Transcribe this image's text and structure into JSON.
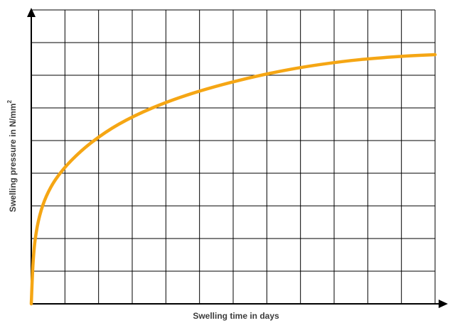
{
  "chart_data": {
    "type": "line",
    "xlabel": "Swelling time in days",
    "ylabel": "Swelling pressure in N/mm",
    "ylabel_superscript": "2",
    "xlim": [
      0,
      12
    ],
    "ylim": [
      0,
      9
    ],
    "grid": true,
    "x_gridlines": 12,
    "y_gridlines": 9,
    "series": [
      {
        "color": "#f5a614",
        "x": [
          0,
          0.05,
          0.12,
          0.25,
          0.45,
          0.75,
          1.2,
          1.8,
          2.6,
          3.6,
          4.8,
          6.2,
          7.8,
          9.5,
          11.0,
          12.0
        ],
        "y": [
          0.0,
          1.2,
          2.0,
          2.7,
          3.3,
          3.85,
          4.4,
          4.95,
          5.5,
          6.0,
          6.45,
          6.85,
          7.2,
          7.45,
          7.58,
          7.63
        ]
      }
    ]
  },
  "colors": {
    "axis": "#000000",
    "grid": "#000000",
    "curve": "#f5a614",
    "label": "#3c3c3c"
  }
}
